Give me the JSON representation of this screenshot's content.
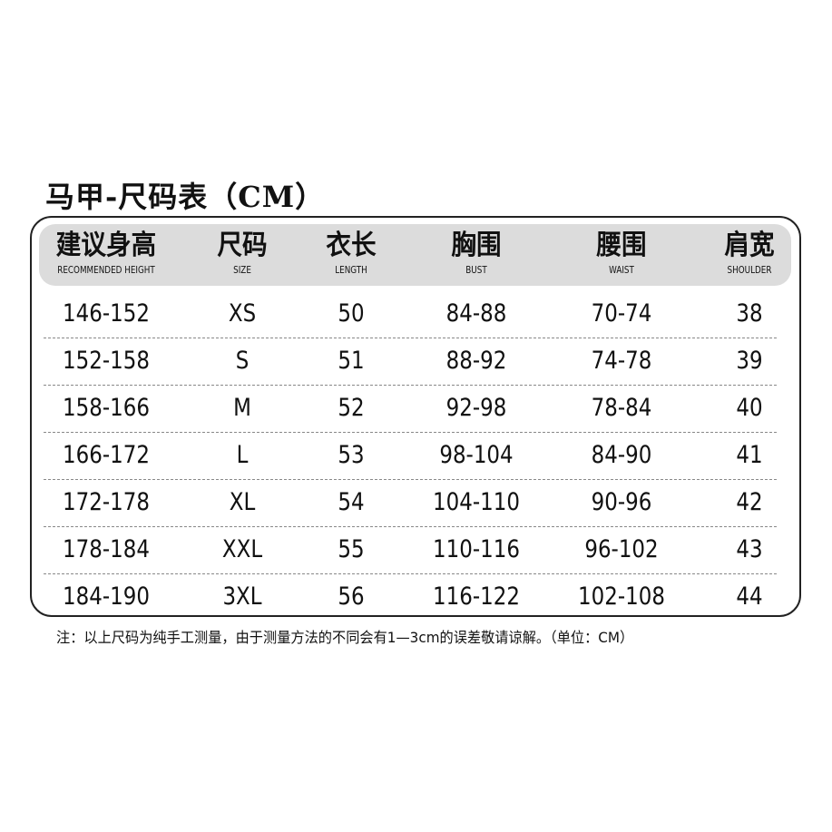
{
  "title": "马甲-尺码表（CM）",
  "table": {
    "columns": [
      {
        "cn": "建议身高",
        "en": "RECOMMENDED HEIGHT"
      },
      {
        "cn": "尺码",
        "en": "SIZE"
      },
      {
        "cn": "衣长",
        "en": "LENGTH"
      },
      {
        "cn": "胸围",
        "en": "BUST"
      },
      {
        "cn": "腰围",
        "en": "WAIST"
      },
      {
        "cn": "肩宽",
        "en": "SHOULDER"
      }
    ],
    "rows": [
      [
        "146-152",
        "XS",
        "50",
        "84-88",
        "70-74",
        "38"
      ],
      [
        "152-158",
        "S",
        "51",
        "88-92",
        "74-78",
        "39"
      ],
      [
        "158-166",
        "M",
        "52",
        "92-98",
        "78-84",
        "40"
      ],
      [
        "166-172",
        "L",
        "53",
        "98-104",
        "84-90",
        "41"
      ],
      [
        "172-178",
        "XL",
        "54",
        "104-110",
        "90-96",
        "42"
      ],
      [
        "178-184",
        "XXL",
        "55",
        "110-116",
        "96-102",
        "43"
      ],
      [
        "184-190",
        "3XL",
        "56",
        "116-122",
        "102-108",
        "44"
      ]
    ]
  },
  "note": "注：以上尺码为纯手工测量，由于测量方法的不同会有1—3cm的误差敬请谅解。（单位：CM）"
}
